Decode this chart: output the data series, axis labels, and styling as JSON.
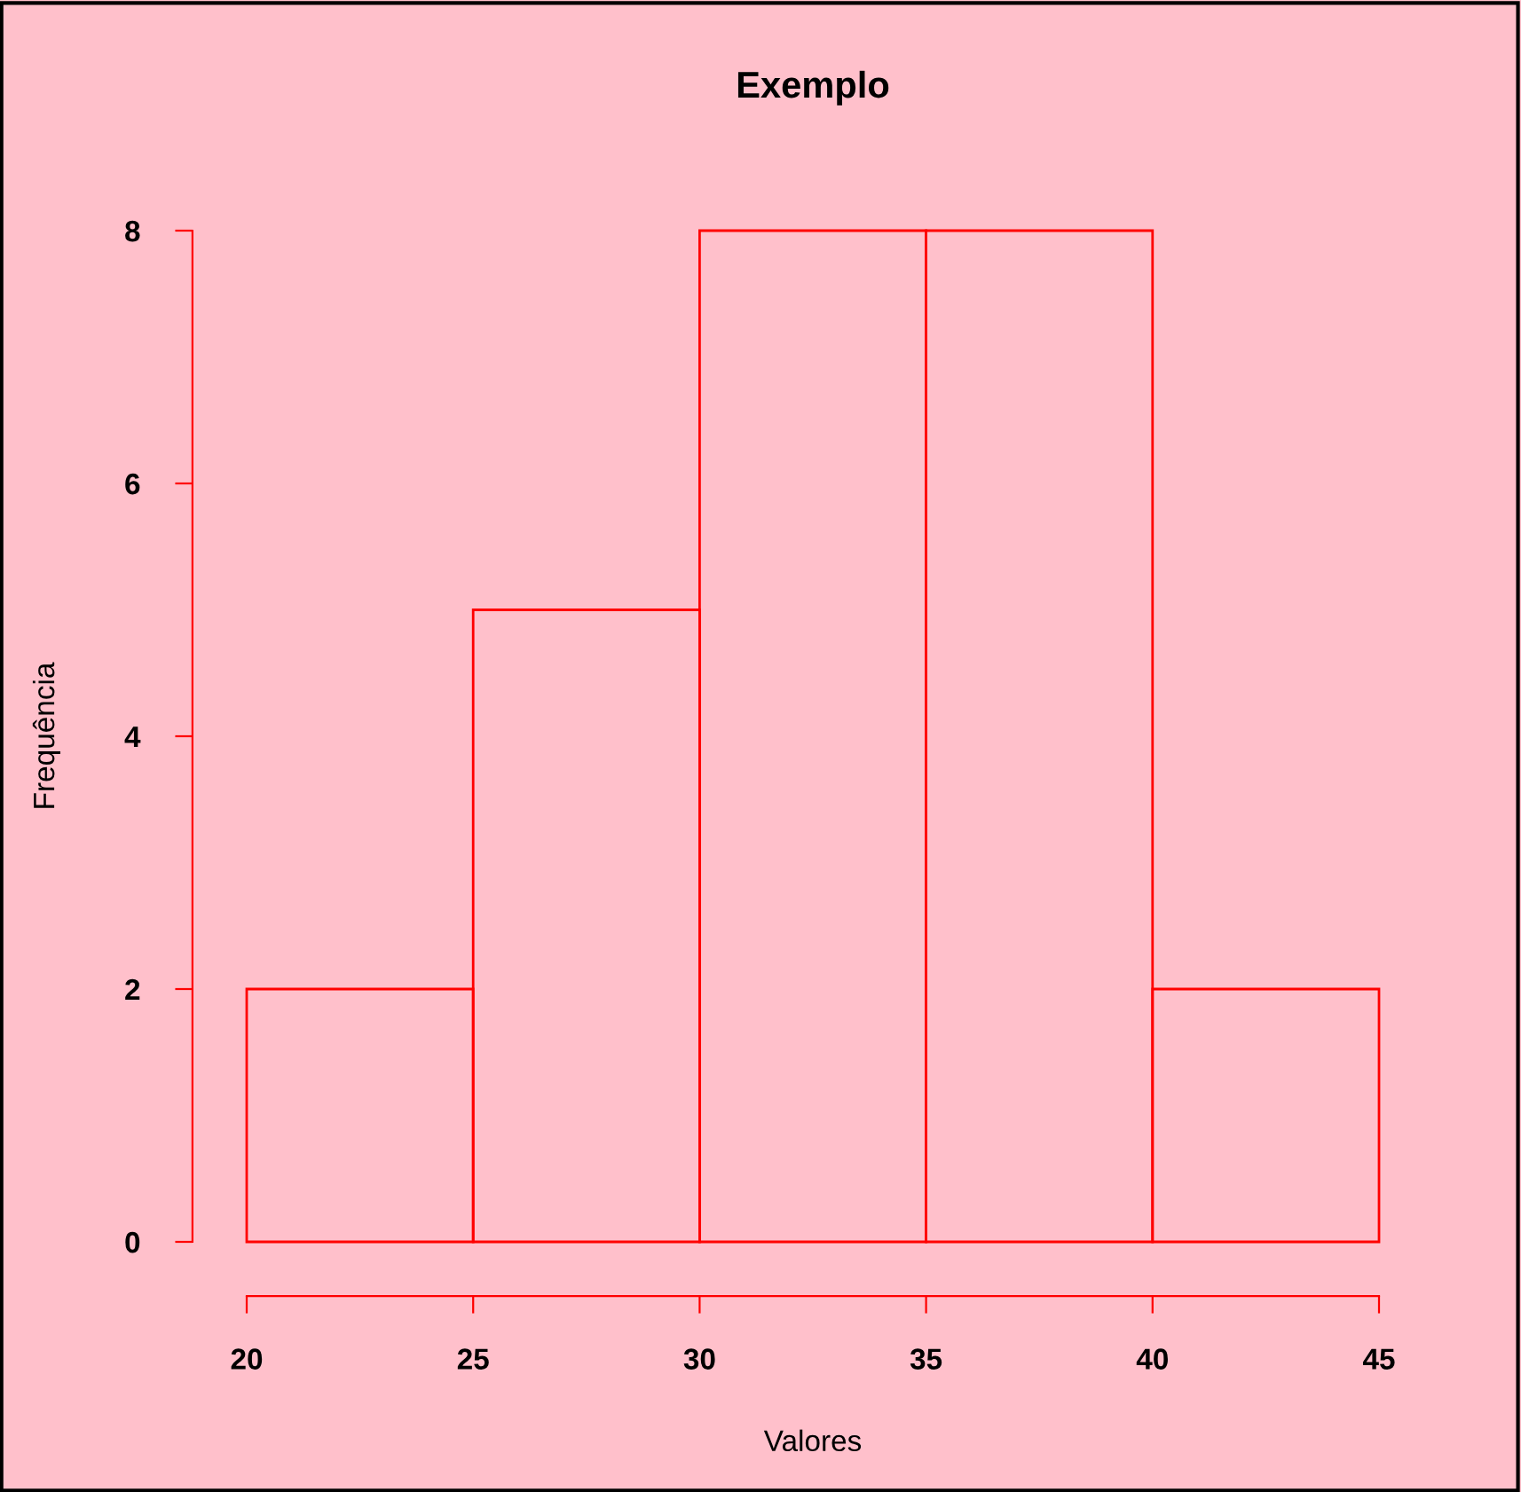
{
  "chart_data": {
    "type": "histogram",
    "title": "Exemplo",
    "xlabel": "Valores",
    "ylabel": "Frequência",
    "bins": [
      20,
      25,
      30,
      35,
      40,
      45
    ],
    "values": [
      2,
      5,
      8,
      8,
      2
    ],
    "color": "#ff0000",
    "xlim": [
      20,
      45
    ],
    "xticks": [
      20,
      25,
      30,
      35,
      40,
      45
    ],
    "ylim": [
      0,
      8
    ],
    "yticks": [
      0,
      2,
      4,
      6,
      8
    ]
  }
}
